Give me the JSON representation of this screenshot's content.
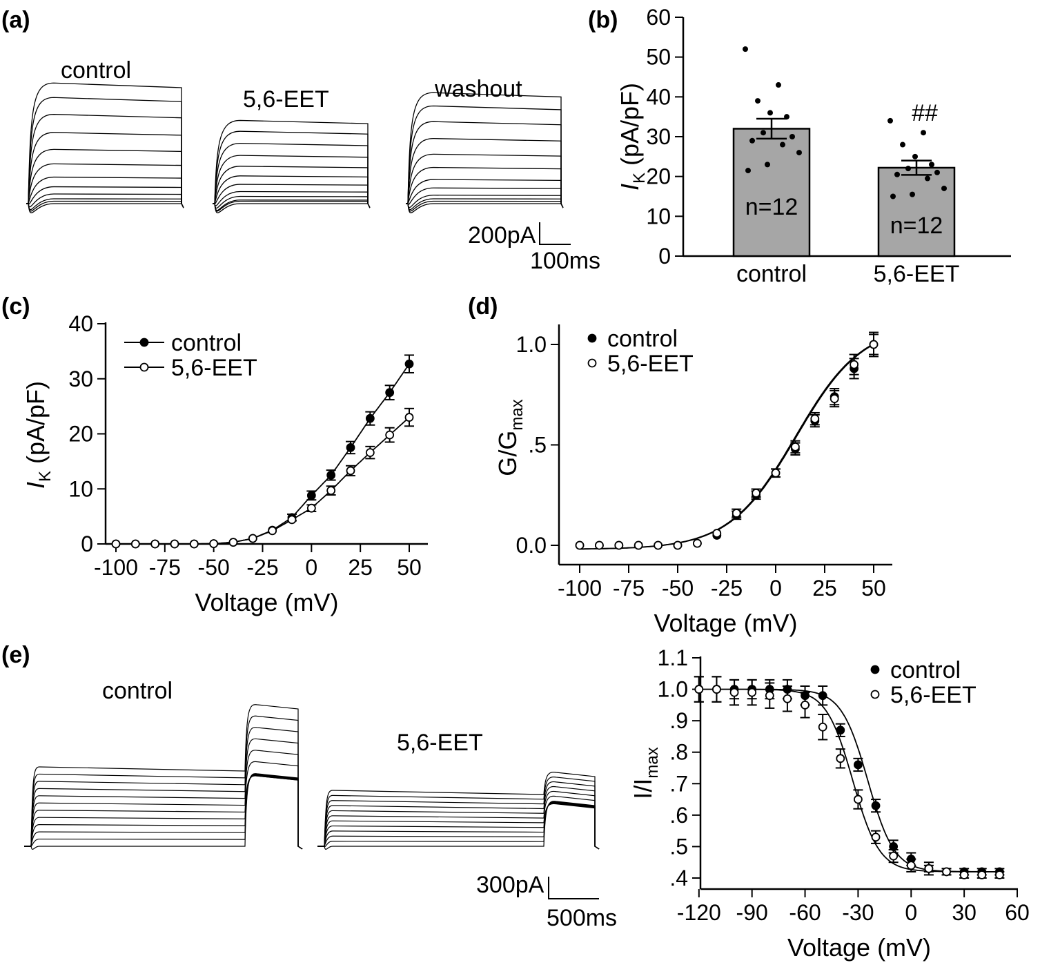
{
  "figure_title": "",
  "panel_labels": {
    "a": "(a)",
    "b": "(b)",
    "c": "(c)",
    "d": "(d)",
    "e": "(e)"
  },
  "panel_a": {
    "trace_labels": [
      "control",
      "5,6-EET",
      "washout"
    ],
    "scale_current": "200pA",
    "scale_time": "100ms",
    "steady_levels": {
      "control": [
        0,
        0.02,
        0.04,
        0.08,
        0.14,
        0.22,
        0.33,
        0.45,
        0.59,
        0.74,
        0.88,
        1.0
      ],
      "5,6-EET": [
        0,
        0.02,
        0.03,
        0.06,
        0.1,
        0.16,
        0.23,
        0.31,
        0.4,
        0.5,
        0.6,
        0.69
      ],
      "washout": [
        0,
        0.02,
        0.04,
        0.07,
        0.13,
        0.2,
        0.3,
        0.41,
        0.54,
        0.68,
        0.81,
        0.92
      ]
    }
  },
  "panel_e_traces": {
    "trace_labels": [
      "control",
      "5,6-EET"
    ],
    "scale_current": "300pA",
    "scale_time": "500ms"
  },
  "chart_data": [
    {
      "panel": "b",
      "type": "bar",
      "categories": [
        "control",
        "5,6-EET"
      ],
      "values": [
        32.0,
        22.2
      ],
      "errors": [
        2.5,
        1.8
      ],
      "bar_labels": [
        "n=12",
        "n=12"
      ],
      "significance": "##",
      "points": [
        [
          52,
          43,
          39,
          36,
          35,
          31,
          30,
          29,
          28,
          26,
          23,
          21.5
        ],
        [
          34,
          31,
          28,
          25,
          23,
          22,
          21,
          20.5,
          19.5,
          17,
          15.5,
          15
        ]
      ],
      "ylabel": "I_K (pA/pF)",
      "ylim": [
        0,
        60
      ],
      "yticks": [
        "0",
        "10",
        "20",
        "30",
        "40",
        "50",
        "60"
      ]
    },
    {
      "panel": "c",
      "type": "line",
      "xlabel": "Voltage (mV)",
      "ylabel": "I_K (pA/pF)",
      "xlim": [
        -100,
        50
      ],
      "ylim": [
        0,
        40
      ],
      "xticks": [
        "-100",
        "-75",
        "-50",
        "-25",
        "0",
        "25",
        "50"
      ],
      "yticks": [
        "0",
        "10",
        "20",
        "30",
        "40"
      ],
      "legend_position": "top-left",
      "x": [
        -100,
        -90,
        -80,
        -70,
        -60,
        -50,
        -40,
        -30,
        -20,
        -10,
        0,
        10,
        20,
        30,
        40,
        50
      ],
      "series": [
        {
          "name": "control",
          "marker": "filled",
          "values": [
            0,
            0,
            0,
            0,
            0,
            0.05,
            0.3,
            1.0,
            2.5,
            4.8,
            8.8,
            12.5,
            17.5,
            22.8,
            27.5,
            32.7
          ],
          "errors": [
            0.1,
            0.1,
            0.1,
            0.1,
            0.1,
            0.1,
            0.2,
            0.3,
            0.4,
            0.6,
            0.8,
            0.9,
            1.1,
            1.2,
            1.3,
            1.6
          ]
        },
        {
          "name": "5,6-EET",
          "marker": "open",
          "values": [
            0,
            0,
            0,
            0,
            0,
            0.05,
            0.3,
            1.0,
            2.4,
            4.4,
            6.5,
            9.7,
            13.3,
            16.6,
            19.8,
            23.0
          ],
          "errors": [
            0.1,
            0.1,
            0.1,
            0.1,
            0.1,
            0.1,
            0.2,
            0.3,
            0.4,
            0.5,
            0.6,
            0.8,
            0.9,
            1.1,
            1.3,
            1.6
          ]
        }
      ]
    },
    {
      "panel": "d",
      "type": "line",
      "xlabel": "Voltage (mV)",
      "ylabel": "G/G_max",
      "xlim": [
        -100,
        50
      ],
      "ylim": [
        0,
        1
      ],
      "xticks": [
        "-100",
        "-75",
        "-50",
        "-25",
        "0",
        "25",
        "50"
      ],
      "yticks": [
        "0.0",
        ".5",
        "1.0"
      ],
      "legend_position": "top-left",
      "x": [
        -100,
        -90,
        -80,
        -70,
        -60,
        -50,
        -40,
        -30,
        -20,
        -10,
        0,
        10,
        20,
        30,
        40,
        50
      ],
      "series": [
        {
          "name": "control",
          "marker": "filled",
          "values": [
            0,
            0,
            0,
            0,
            0,
            0,
            0.01,
            0.05,
            0.15,
            0.25,
            0.36,
            0.48,
            0.62,
            0.74,
            0.88,
            1.0
          ],
          "errors": [
            0.005,
            0.005,
            0.005,
            0.005,
            0.005,
            0.005,
            0.01,
            0.01,
            0.02,
            0.02,
            0.02,
            0.03,
            0.03,
            0.04,
            0.05,
            0.05
          ]
        },
        {
          "name": "5,6-EET",
          "marker": "open",
          "values": [
            0,
            0,
            0,
            0,
            0,
            0,
            0.01,
            0.06,
            0.16,
            0.26,
            0.36,
            0.49,
            0.63,
            0.73,
            0.9,
            1.0
          ],
          "errors": [
            0.005,
            0.005,
            0.005,
            0.005,
            0.005,
            0.005,
            0.01,
            0.01,
            0.02,
            0.02,
            0.02,
            0.03,
            0.03,
            0.04,
            0.05,
            0.06
          ]
        }
      ]
    },
    {
      "panel": "e",
      "type": "line",
      "xlabel": "Voltage (mV)",
      "ylabel": "I/I_max",
      "xlim": [
        -125,
        60
      ],
      "ylim": [
        0.4,
        1.1
      ],
      "xticks": [
        "-120",
        "-90",
        "-60",
        "-30",
        "0",
        "30",
        "60"
      ],
      "yticks": [
        ".4",
        ".5",
        ".6",
        ".7",
        ".8",
        ".9",
        "1.0",
        "1.1"
      ],
      "legend_position": "top-right",
      "x": [
        -120,
        -110,
        -100,
        -90,
        -80,
        -70,
        -60,
        -50,
        -40,
        -30,
        -20,
        -10,
        0,
        10,
        20,
        30,
        40,
        50
      ],
      "series": [
        {
          "name": "control",
          "marker": "filled",
          "values": [
            1.0,
            1.0,
            1.0,
            1.0,
            1.0,
            1.0,
            0.98,
            0.98,
            0.87,
            0.76,
            0.63,
            0.5,
            0.46,
            0.43,
            0.42,
            0.42,
            0.42,
            0.42
          ],
          "errors": [
            0.04,
            0.04,
            0.03,
            0.03,
            0.03,
            0.03,
            0.03,
            0.03,
            0.02,
            0.02,
            0.02,
            0.02,
            0.02,
            0.02,
            0.01,
            0.01,
            0.01,
            0.01
          ]
        },
        {
          "name": "5,6-EET",
          "marker": "open",
          "values": [
            1.0,
            1.0,
            0.99,
            0.99,
            0.98,
            0.97,
            0.95,
            0.88,
            0.78,
            0.65,
            0.53,
            0.47,
            0.44,
            0.43,
            0.42,
            0.41,
            0.41,
            0.41
          ],
          "errors": [
            0.04,
            0.04,
            0.04,
            0.04,
            0.04,
            0.04,
            0.04,
            0.04,
            0.03,
            0.03,
            0.02,
            0.02,
            0.02,
            0.01,
            0.01,
            0.01,
            0.01,
            0.01
          ]
        }
      ]
    }
  ]
}
